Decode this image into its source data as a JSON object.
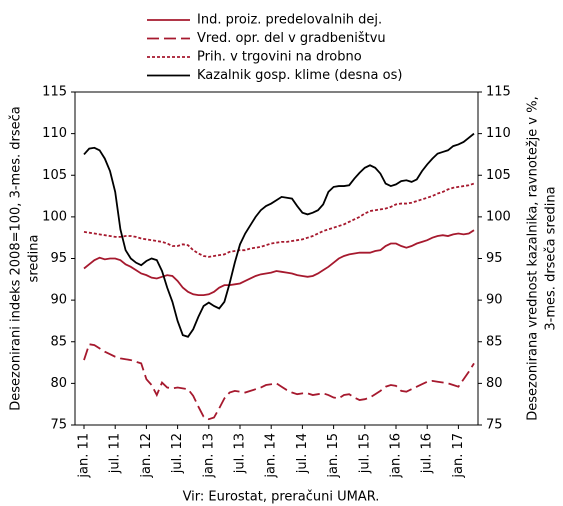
{
  "chart_data": {
    "type": "line",
    "y_label": [
      "Desezonirani indeks 2008=100, 3-mes. drseča",
      "sredina"
    ],
    "y2_label": [
      "Desezonirana vrednost kazalnika, ravnotežje v %,",
      "3-mes. drseča sredina"
    ],
    "source": "Vir: Eurostat, preračuni UMAR.",
    "legend": "top",
    "grid": false,
    "categories": [
      "jan. 11",
      null,
      null,
      null,
      null,
      null,
      "jul. 11",
      null,
      null,
      null,
      null,
      null,
      "jan. 12",
      null,
      null,
      null,
      null,
      null,
      "jul. 12",
      null,
      null,
      null,
      null,
      null,
      "jan. 13",
      null,
      null,
      null,
      null,
      null,
      "jul. 13",
      null,
      null,
      null,
      null,
      null,
      "jan. 14",
      null,
      null,
      null,
      null,
      null,
      "jul. 14",
      null,
      null,
      null,
      null,
      null,
      "jan. 15",
      null,
      null,
      null,
      null,
      null,
      "jul. 15",
      null,
      null,
      null,
      null,
      null,
      "jan. 16",
      null,
      null,
      null,
      null,
      null,
      "jul. 16",
      null,
      null,
      null,
      null,
      null,
      "jan. 17",
      null,
      null,
      null
    ],
    "ylim": [
      75,
      115
    ],
    "yticks": [
      75,
      80,
      85,
      90,
      95,
      100,
      105,
      110,
      115
    ],
    "y2lim": [
      75,
      115
    ],
    "y2ticks": [
      75,
      80,
      85,
      90,
      95,
      100,
      105,
      110,
      115
    ],
    "series": [
      {
        "name": "Ind. proiz. predelovalnih dej.",
        "color": "#a6192e",
        "style": "solid",
        "values": [
          93.8,
          94.3,
          94.8,
          95.1,
          94.9,
          95.0,
          95.0,
          94.8,
          94.3,
          94.0,
          93.6,
          93.2,
          93.0,
          92.7,
          92.6,
          92.8,
          93.0,
          92.9,
          92.3,
          91.5,
          91.0,
          90.7,
          90.6,
          90.6,
          90.7,
          91.0,
          91.5,
          91.8,
          91.8,
          91.9,
          92.0,
          92.3,
          92.6,
          92.9,
          93.1,
          93.2,
          93.3,
          93.5,
          93.4,
          93.3,
          93.2,
          93.0,
          92.9,
          92.8,
          92.9,
          93.2,
          93.6,
          94.0,
          94.5,
          95.0,
          95.3,
          95.5,
          95.6,
          95.7,
          95.7,
          95.7,
          95.9,
          96.0,
          96.5,
          96.8,
          96.8,
          96.5,
          96.3,
          96.5,
          96.8,
          97.0,
          97.2,
          97.5,
          97.7,
          97.8,
          97.7,
          97.9,
          98.0,
          97.9,
          98.0,
          98.4
        ]
      },
      {
        "name": "Vred. opr. del v gradbeništvu",
        "color": "#a6192e",
        "style": "dashed",
        "values": [
          82.8,
          84.7,
          84.6,
          84.2,
          83.8,
          83.5,
          83.2,
          83.0,
          82.9,
          82.8,
          82.6,
          82.4,
          80.5,
          79.8,
          78.6,
          80.1,
          79.5,
          79.4,
          79.5,
          79.4,
          79.3,
          78.5,
          77.2,
          76.0,
          75.7,
          75.9,
          77.0,
          78.2,
          78.9,
          79.1,
          79.0,
          78.9,
          79.1,
          79.3,
          79.5,
          79.8,
          79.9,
          80.0,
          79.6,
          79.2,
          78.9,
          78.7,
          78.8,
          78.8,
          78.6,
          78.7,
          78.8,
          78.6,
          78.3,
          78.2,
          78.6,
          78.7,
          78.3,
          78.0,
          78.1,
          78.3,
          78.7,
          79.1,
          79.6,
          79.8,
          79.7,
          79.1,
          79.0,
          79.3,
          79.6,
          79.9,
          80.2,
          80.3,
          80.2,
          80.1,
          80.0,
          79.8,
          79.6,
          80.5,
          81.4,
          82.4
        ]
      },
      {
        "name": "Prih. v trgovini na drobno",
        "color": "#a6192e",
        "style": "dotted",
        "values": [
          98.2,
          98.1,
          98.0,
          97.9,
          97.8,
          97.7,
          97.6,
          97.6,
          97.7,
          97.7,
          97.6,
          97.4,
          97.3,
          97.2,
          97.1,
          97.0,
          96.8,
          96.5,
          96.5,
          96.7,
          96.6,
          96.0,
          95.6,
          95.3,
          95.2,
          95.3,
          95.4,
          95.5,
          95.8,
          95.9,
          96.0,
          96.0,
          96.2,
          96.3,
          96.4,
          96.6,
          96.8,
          96.9,
          97.0,
          97.0,
          97.1,
          97.2,
          97.3,
          97.5,
          97.7,
          98.0,
          98.3,
          98.5,
          98.7,
          98.9,
          99.1,
          99.4,
          99.7,
          100.0,
          100.4,
          100.7,
          100.8,
          100.9,
          101.0,
          101.2,
          101.5,
          101.6,
          101.6,
          101.7,
          101.9,
          102.1,
          102.3,
          102.5,
          102.8,
          103.0,
          103.3,
          103.5,
          103.6,
          103.7,
          103.8,
          104.0
        ]
      },
      {
        "name": "Kazalnik gosp. klime (desna os)",
        "color": "#000000",
        "style": "solid",
        "axis": "y2",
        "values": [
          107.5,
          108.2,
          108.3,
          108.0,
          107.0,
          105.5,
          103.0,
          98.5,
          96.0,
          95.0,
          94.5,
          94.2,
          94.7,
          95.0,
          94.8,
          93.5,
          91.5,
          89.8,
          87.5,
          85.8,
          85.6,
          86.5,
          88.0,
          89.3,
          89.7,
          89.3,
          89.0,
          89.8,
          92.0,
          94.5,
          96.7,
          98.0,
          99.0,
          100.0,
          100.8,
          101.3,
          101.6,
          102.0,
          102.4,
          102.3,
          102.2,
          101.3,
          100.5,
          100.3,
          100.5,
          100.8,
          101.5,
          103.0,
          103.6,
          103.7,
          103.7,
          103.8,
          104.6,
          105.3,
          105.9,
          106.2,
          105.9,
          105.2,
          104.0,
          103.7,
          103.9,
          104.3,
          104.4,
          104.2,
          104.5,
          105.5,
          106.3,
          107.0,
          107.6,
          107.8,
          108.0,
          108.5,
          108.7,
          109.0,
          109.5,
          110.0
        ]
      }
    ]
  }
}
